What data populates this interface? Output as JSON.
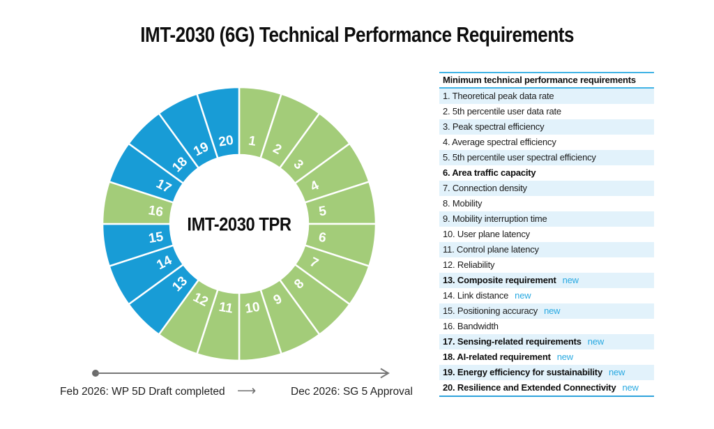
{
  "title": "IMT-2030 (6G) Technical Performance Requirements",
  "chart_data": {
    "type": "pie",
    "subtype": "donut",
    "center_label": "IMT-2030 TPR",
    "equal_slices": true,
    "slice_angle_deg": 18,
    "legend_position": "none",
    "colors": {
      "existing": "#a3cc79",
      "new": "#189cd6"
    },
    "segments": [
      {
        "label": "1",
        "value": 1,
        "status": "existing"
      },
      {
        "label": "2",
        "value": 1,
        "status": "existing"
      },
      {
        "label": "3",
        "value": 1,
        "status": "existing"
      },
      {
        "label": "4",
        "value": 1,
        "status": "existing"
      },
      {
        "label": "5",
        "value": 1,
        "status": "existing"
      },
      {
        "label": "6",
        "value": 1,
        "status": "existing"
      },
      {
        "label": "7",
        "value": 1,
        "status": "existing"
      },
      {
        "label": "8",
        "value": 1,
        "status": "existing"
      },
      {
        "label": "9",
        "value": 1,
        "status": "existing"
      },
      {
        "label": "10",
        "value": 1,
        "status": "existing"
      },
      {
        "label": "11",
        "value": 1,
        "status": "existing"
      },
      {
        "label": "12",
        "value": 1,
        "status": "existing"
      },
      {
        "label": "13",
        "value": 1,
        "status": "new"
      },
      {
        "label": "14",
        "value": 1,
        "status": "new"
      },
      {
        "label": "15",
        "value": 1,
        "status": "new"
      },
      {
        "label": "16",
        "value": 1,
        "status": "existing"
      },
      {
        "label": "17",
        "value": 1,
        "status": "new"
      },
      {
        "label": "18",
        "value": 1,
        "status": "new"
      },
      {
        "label": "19",
        "value": 1,
        "status": "new"
      },
      {
        "label": "20",
        "value": 1,
        "status": "new"
      }
    ]
  },
  "table": {
    "header": "Minimum technical performance requirements",
    "new_tag": "new",
    "rows": [
      {
        "label": "1. Theoretical peak data rate",
        "bold": false,
        "new": false
      },
      {
        "label": "2. 5th percentile user data rate",
        "bold": false,
        "new": false
      },
      {
        "label": "3. Peak spectral efficiency",
        "bold": false,
        "new": false
      },
      {
        "label": "4. Average spectral efficiency",
        "bold": false,
        "new": false
      },
      {
        "label": "5. 5th percentile user spectral efficiency",
        "bold": false,
        "new": false
      },
      {
        "label": "6. Area traffic capacity",
        "bold": true,
        "new": false
      },
      {
        "label": "7. Connection density",
        "bold": false,
        "new": false
      },
      {
        "label": "8. Mobility",
        "bold": false,
        "new": false
      },
      {
        "label": "9. Mobility interruption time",
        "bold": false,
        "new": false
      },
      {
        "label": "10. User plane latency",
        "bold": false,
        "new": false
      },
      {
        "label": "11. Control plane latency",
        "bold": false,
        "new": false
      },
      {
        "label": "12. Reliability",
        "bold": false,
        "new": false
      },
      {
        "label": "13. Composite requirement",
        "bold": true,
        "new": true
      },
      {
        "label": "14. Link distance",
        "bold": false,
        "new": true
      },
      {
        "label": "15. Positioning accuracy",
        "bold": false,
        "new": true
      },
      {
        "label": "16. Bandwidth",
        "bold": false,
        "new": false
      },
      {
        "label": "17. Sensing-related requirements",
        "bold": true,
        "new": true
      },
      {
        "label": "18. AI-related requirement",
        "bold": true,
        "new": true
      },
      {
        "label": "19. Energy efficiency for sustainability",
        "bold": true,
        "new": true
      },
      {
        "label": "20. Resilience and Extended Connectivity",
        "bold": true,
        "new": true
      }
    ]
  },
  "timeline": {
    "start_label": "Feb 2026: WP 5D Draft completed",
    "mid_arrow": "⟶",
    "end_label": "Dec 2026: SG 5 Approval"
  },
  "colors": {
    "segment_existing": "#a3cc79",
    "segment_new": "#189cd6",
    "table_stripe": "#e2f2fb",
    "table_border": "#41b3e5",
    "new_tag_text": "#29a9e1",
    "timeline_gray": "#757575"
  }
}
